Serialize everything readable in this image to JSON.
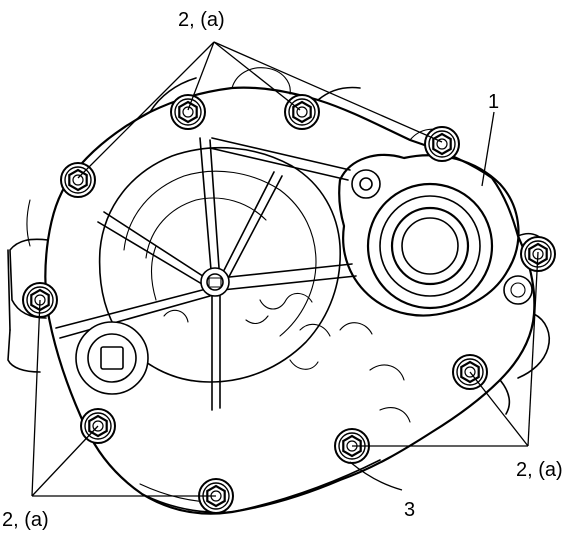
{
  "callouts": {
    "top_bolts": "2, (a)",
    "right_bolts": "2, (a)",
    "left_bolts": "2, (a)",
    "part_cover": "1",
    "part_gasket": "3"
  },
  "icons": {
    "bolt": "flange-bolt-icon",
    "bearing": "bearing-bore-icon",
    "drain_plug": "square-drive-plug-icon"
  }
}
